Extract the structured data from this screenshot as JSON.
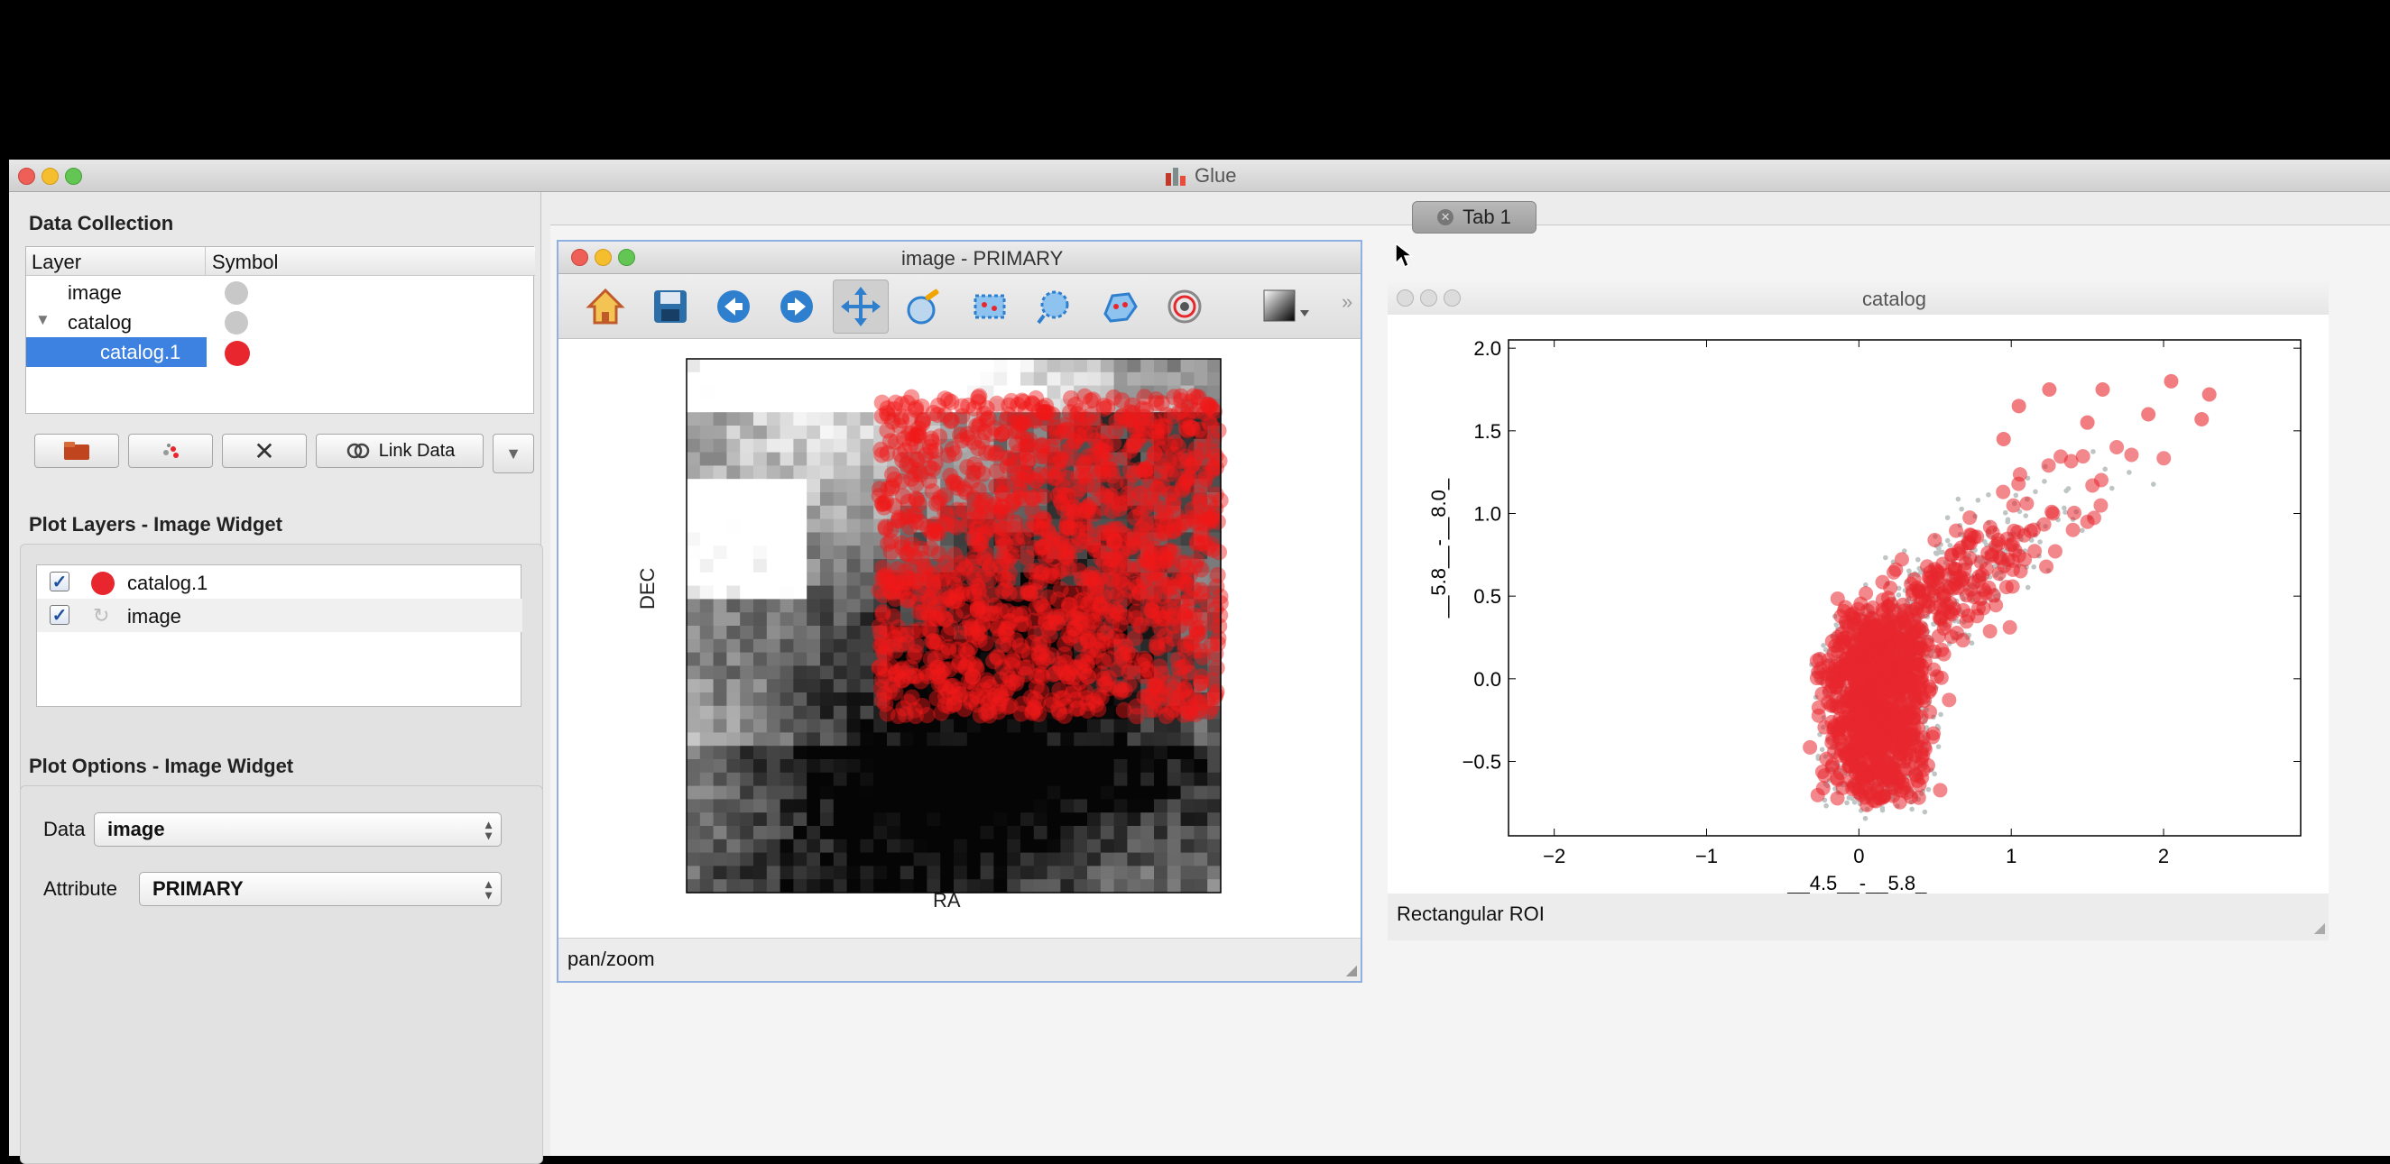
{
  "app": {
    "title": "Glue"
  },
  "tabs": [
    {
      "label": "Tab 1"
    }
  ],
  "data_collection": {
    "heading": "Data Collection",
    "columns": [
      "Layer",
      "Symbol"
    ],
    "rows": [
      {
        "label": "image",
        "symbol_color": "#c8c8c8"
      },
      {
        "label": "catalog",
        "symbol_color": "#c8c8c8",
        "expanded": true
      },
      {
        "label": "catalog.1",
        "symbol_color": "#e8262d",
        "selected": true
      }
    ],
    "buttons": {
      "link_data": "Link Data"
    }
  },
  "plot_layers": {
    "heading": "Plot Layers - Image Widget",
    "items": [
      {
        "label": "catalog.1",
        "checked": true,
        "color": "#e8262d"
      },
      {
        "label": "image",
        "checked": true
      }
    ]
  },
  "plot_options": {
    "heading": "Plot Options - Image Widget",
    "data_label": "Data",
    "data_value": "image",
    "attribute_label": "Attribute",
    "attribute_value": "PRIMARY"
  },
  "image_window": {
    "title": "image - PRIMARY",
    "xlabel": "RA",
    "ylabel": "DEC",
    "status": "pan/zoom",
    "toolbar": [
      "home-icon",
      "save-icon",
      "back-arrow-icon",
      "forward-arrow-icon",
      "pan-icon",
      "contrast-icon",
      "rectangle-select-icon",
      "circle-select-icon",
      "polygon-select-icon",
      "contour-icon",
      "colormap-icon"
    ]
  },
  "catalog_window": {
    "title": "catalog",
    "status": "Rectangular ROI"
  },
  "chart_data": {
    "type": "scatter",
    "xlabel": "__4.5__-__5.8_",
    "ylabel": "__5.8__-__8.0_",
    "xlim": [
      -2.3,
      2.9
    ],
    "ylim": [
      -0.95,
      2.05
    ],
    "xticks": [
      "−2",
      "−1",
      "0",
      "1",
      "2"
    ],
    "yticks": [
      "−0.5",
      "0.0",
      "0.5",
      "1.0",
      "1.5",
      "2.0"
    ],
    "series": [
      {
        "color": "#bfc5c5"
      },
      {
        "color": "#e8262d"
      }
    ]
  }
}
